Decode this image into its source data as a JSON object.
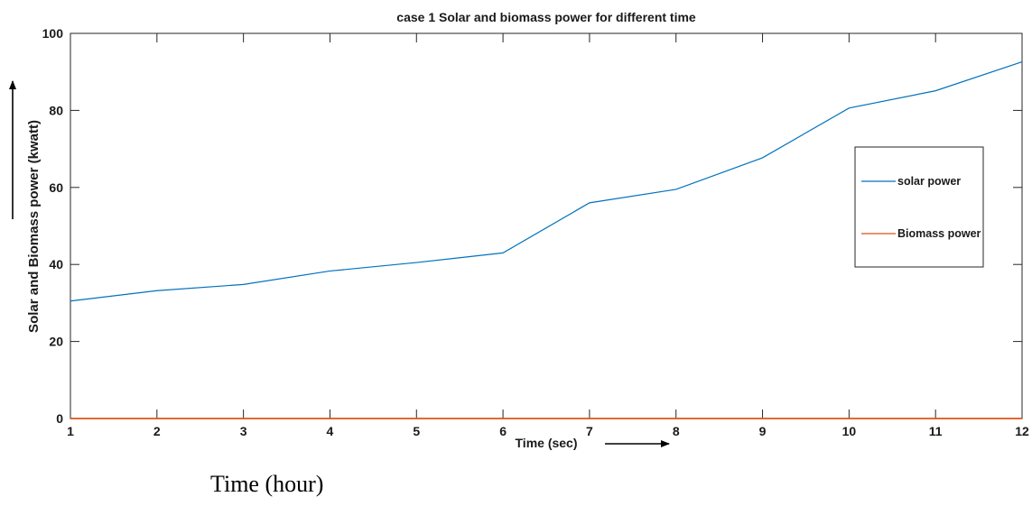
{
  "chart_data": {
    "type": "line",
    "title": "case 1 Solar and biomass power for different time",
    "xlabel": "Time (sec)",
    "ylabel": "Solar and Biomass power (kwatt)",
    "extra_xlabel": "Time (hour)",
    "x": [
      1,
      2,
      3,
      4,
      5,
      6,
      7,
      8,
      9,
      10,
      11,
      12
    ],
    "xlim": [
      1,
      12
    ],
    "ylim": [
      0,
      100
    ],
    "xticks": [
      1,
      2,
      3,
      4,
      5,
      6,
      7,
      8,
      9,
      10,
      11,
      12
    ],
    "yticks": [
      0,
      20,
      40,
      60,
      80,
      100
    ],
    "grid": false,
    "legend_position": "right",
    "series": [
      {
        "name": "solar power",
        "color": "#0072BD",
        "values": [
          30.5,
          33.2,
          34.8,
          38.3,
          40.5,
          43.0,
          56.0,
          59.5,
          67.7,
          80.6,
          85.1,
          92.6
        ]
      },
      {
        "name": "Biomass power",
        "color": "#D95319",
        "values": [
          0,
          0,
          0,
          0,
          0,
          0,
          0,
          0,
          0,
          0,
          0,
          0
        ]
      }
    ]
  }
}
